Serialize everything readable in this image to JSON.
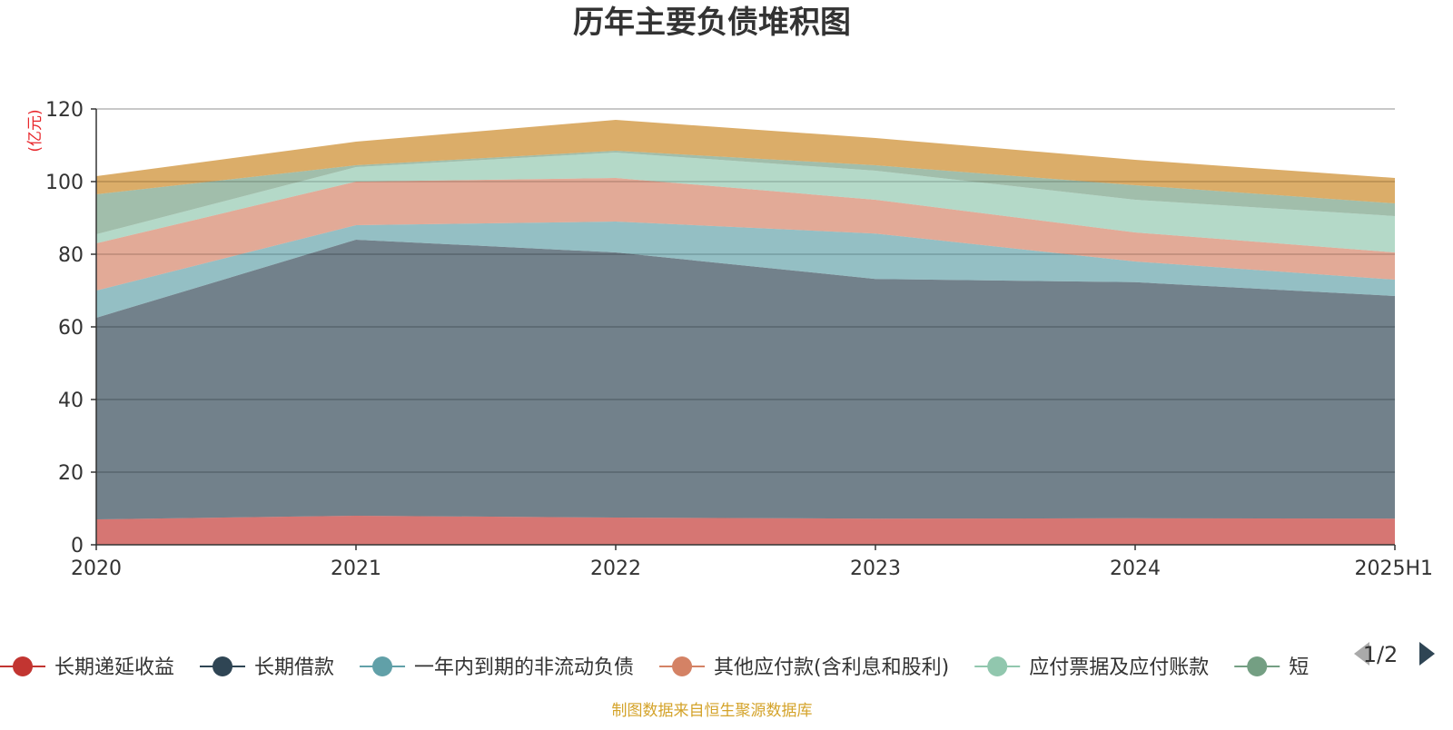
{
  "chart_data": {
    "type": "area",
    "stacked": true,
    "title": "历年主要负债堆积图",
    "unit_label": "(亿元)",
    "categories": [
      "2020",
      "2021",
      "2022",
      "2023",
      "2024",
      "2025H1"
    ],
    "ylim": [
      0,
      120
    ],
    "yticks": [
      0,
      20,
      40,
      60,
      80,
      100,
      120
    ],
    "grid": true,
    "legend_position": "bottom",
    "legend_page": "1/2",
    "source": "制图数据来自恒生聚源数据库",
    "series": [
      {
        "name": "长期递延收益",
        "color": "#c23531",
        "values": [
          7.0,
          8.0,
          7.5,
          7.2,
          7.3,
          7.2
        ]
      },
      {
        "name": "长期借款",
        "color": "#2f4554",
        "values": [
          55.5,
          76.0,
          73.0,
          66.0,
          65.0,
          61.3
        ]
      },
      {
        "name": "一年内到期的非流动负债",
        "color": "#61a0a8",
        "values": [
          7.5,
          4.0,
          8.5,
          12.5,
          5.7,
          4.5
        ]
      },
      {
        "name": "其他应付款(含利息和股利)",
        "color": "#d48265",
        "values": [
          13.0,
          12.0,
          12.0,
          9.3,
          8.0,
          7.5
        ]
      },
      {
        "name": "应付票据及应付账款",
        "color": "#91c7ae",
        "values": [
          2.5,
          4.0,
          7.0,
          8.0,
          9.0,
          10.0
        ]
      },
      {
        "name": "短",
        "color": "#749f83",
        "values": [
          11.0,
          0.5,
          0.5,
          1.5,
          4.0,
          3.5
        ]
      },
      {
        "name": "",
        "color": "#ca8622",
        "values": [
          5.0,
          6.5,
          8.5,
          7.5,
          7.0,
          7.0
        ]
      }
    ]
  }
}
